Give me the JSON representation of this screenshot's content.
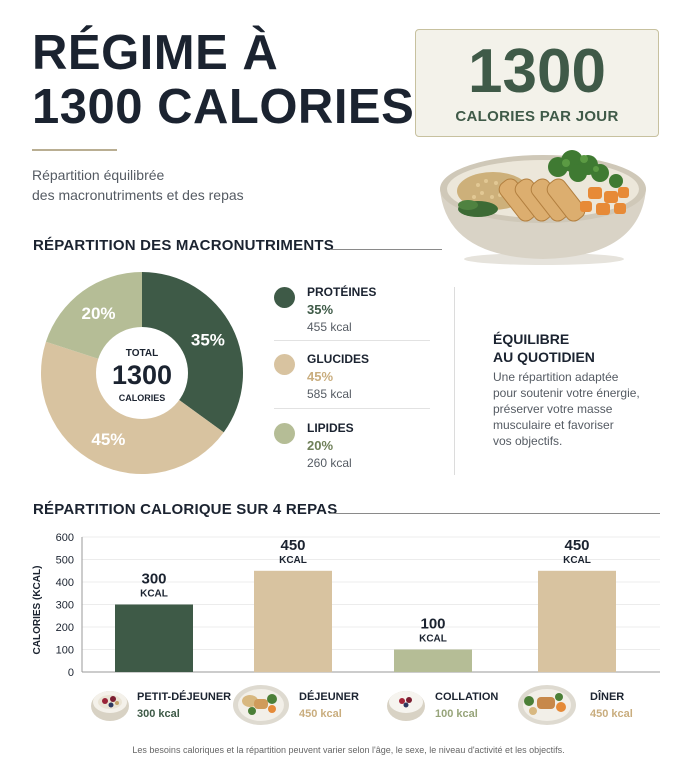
{
  "header": {
    "title_line1": "RÉGIME À",
    "title_line2": "1300 CALORIES",
    "subtitle_line1": "Répartition équilibrée",
    "subtitle_line2": "des macronutriments et des repas",
    "calories_value": "1300",
    "calories_label": "CALORIES PAR JOUR"
  },
  "colors": {
    "proteins": "#3e5a47",
    "carbs": "#d8c3a0",
    "lipids": "#b5bd96",
    "title": "#1b2330",
    "accent_green": "#3f5a48"
  },
  "macros": {
    "section_title": "RÉPARTITION DES MACRONUTRIMENTS",
    "center_label_top": "TOTAL",
    "center_value": "1300",
    "center_label_bottom": "CALORIES",
    "items": [
      {
        "name": "PROTÉINES",
        "pct": "35%",
        "kcal": "455 kcal"
      },
      {
        "name": "GLUCIDES",
        "pct": "45%",
        "kcal": "585 kcal"
      },
      {
        "name": "LIPIDES",
        "pct": "20%",
        "kcal": "260 kcal"
      }
    ],
    "balance_title_line1": "ÉQUILIBRE",
    "balance_title_line2": "AU QUOTIDIEN",
    "balance_text_lines": [
      "Une répartition adaptée",
      "pour soutenir votre énergie,",
      "préserver votre masse",
      "musculaire et favoriser",
      "vos objectifs."
    ]
  },
  "meals": {
    "section_title": "RÉPARTITION CALORIQUE SUR 4 REPAS",
    "items": [
      {
        "name": "PETIT-DÉJEUNER",
        "kcal": "300 kcal",
        "icon": "yogurt-bowl-icon"
      },
      {
        "name": "DÉJEUNER",
        "kcal": "450 kcal",
        "icon": "lunch-plate-icon"
      },
      {
        "name": "COLLATION",
        "kcal": "100 kcal",
        "icon": "snack-bowl-icon"
      },
      {
        "name": "DÎNER",
        "kcal": "450 kcal",
        "icon": "dinner-plate-icon"
      }
    ]
  },
  "chart_data": [
    {
      "type": "pie",
      "categories": [
        "PROTÉINES",
        "GLUCIDES",
        "LIPIDES"
      ],
      "values": [
        35,
        45,
        20
      ],
      "slice_labels": [
        "35%",
        "45%",
        "20%"
      ],
      "kcal": [
        455,
        585,
        260
      ],
      "center_text": [
        "TOTAL",
        "1300",
        "CALORIES"
      ],
      "colors": [
        "#3e5a47",
        "#d8c3a0",
        "#b5bd96"
      ]
    },
    {
      "type": "bar",
      "categories": [
        "PETIT-DÉJEUNER",
        "DÉJEUNER",
        "COLLATION",
        "DÎNER"
      ],
      "values": [
        300,
        450,
        100,
        450
      ],
      "value_labels": [
        "300",
        "450",
        "100",
        "450"
      ],
      "unit_label": "KCAL",
      "colors": [
        "#3e5a47",
        "#d8c3a0",
        "#b5bd96",
        "#d8c3a0"
      ],
      "ylabel": "CALORIES (KCAL)",
      "ylim": [
        0,
        600
      ],
      "yticks": [
        0,
        100,
        200,
        300,
        400,
        500,
        600
      ],
      "grid": true
    }
  ],
  "footnote": "Les besoins caloriques et la répartition peuvent varier selon l'âge, le sexe, le niveau d'activité et les objectifs."
}
